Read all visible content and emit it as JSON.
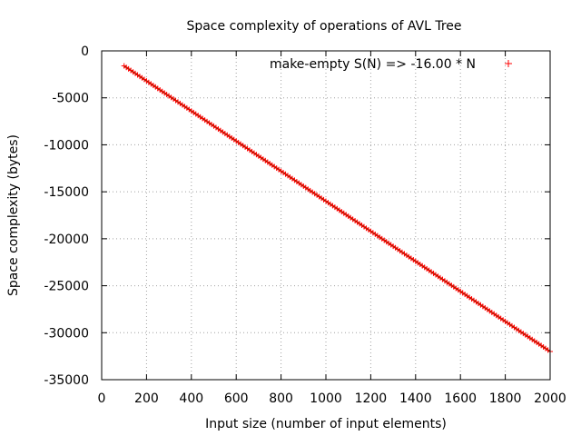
{
  "chart_data": {
    "type": "scatter",
    "title": "Space complexity of operations of AVL Tree",
    "xlabel": "Input size (number of input elements)",
    "ylabel": "Space complexity (bytes)",
    "xlim": [
      0,
      2000
    ],
    "ylim": [
      -35000,
      0
    ],
    "x_ticks": [
      0,
      200,
      400,
      600,
      800,
      1000,
      1200,
      1400,
      1600,
      1800,
      2000
    ],
    "y_ticks": [
      0,
      -5000,
      -10000,
      -15000,
      -20000,
      -25000,
      -30000,
      -35000
    ],
    "grid": true,
    "legend_position": "top-right",
    "marker": "+",
    "series": [
      {
        "name": "make-empty S(N) => -16.00 * N",
        "color": "#ff0000",
        "line_color": "#006400",
        "x_start": 100,
        "x_end": 2000,
        "x_step": 10,
        "slope": -16.0,
        "intercept": 0
      }
    ]
  }
}
